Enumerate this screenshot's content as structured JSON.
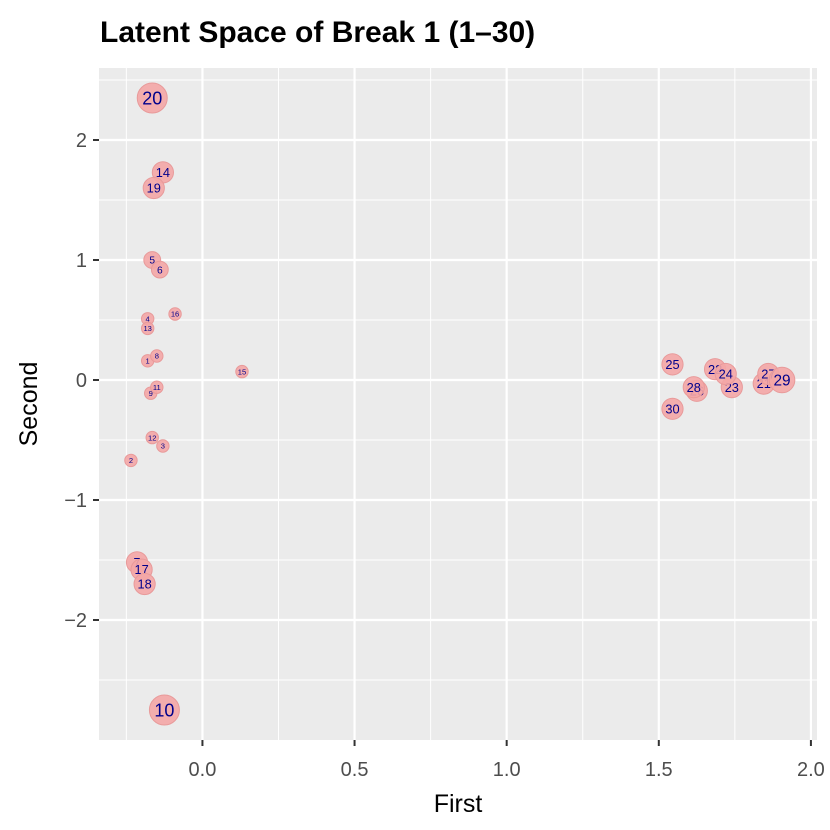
{
  "chart_data": {
    "type": "scatter",
    "title": "Latent Space of Break 1 (1–30)",
    "xlabel": "First",
    "ylabel": "Second",
    "xlim": [
      -0.34,
      2.02
    ],
    "ylim": [
      -3.0,
      2.6
    ],
    "x_ticks": [
      0.0,
      0.5,
      1.0,
      1.5,
      2.0
    ],
    "x_tick_labels": [
      "0.0",
      "0.5",
      "1.0",
      "1.5",
      "2.0"
    ],
    "y_ticks": [
      2,
      1,
      0,
      -1,
      -2
    ],
    "y_tick_labels": [
      "2",
      "1",
      "0",
      "−1",
      "−2"
    ],
    "grid": true,
    "legend": "none",
    "point_fill": "#f4a6a6",
    "label_color": "#00008b",
    "panel_background": "#ebebeb",
    "points": [
      {
        "label": "1",
        "x": -0.18,
        "y": 0.16,
        "size": 1
      },
      {
        "label": "2",
        "x": -0.235,
        "y": -0.67,
        "size": 1
      },
      {
        "label": "3",
        "x": -0.13,
        "y": -0.55,
        "size": 1
      },
      {
        "label": "4",
        "x": -0.18,
        "y": 0.51,
        "size": 1
      },
      {
        "label": "5",
        "x": -0.165,
        "y": 1.0,
        "size": 2
      },
      {
        "label": "6",
        "x": -0.14,
        "y": 0.92,
        "size": 2
      },
      {
        "label": "7",
        "x": -0.215,
        "y": -1.52,
        "size": 3
      },
      {
        "label": "8",
        "x": -0.15,
        "y": 0.2,
        "size": 1
      },
      {
        "label": "9",
        "x": -0.17,
        "y": -0.11,
        "size": 1
      },
      {
        "label": "10",
        "x": -0.125,
        "y": -2.75,
        "size": 5
      },
      {
        "label": "11",
        "x": -0.15,
        "y": -0.06,
        "size": 1
      },
      {
        "label": "12",
        "x": -0.165,
        "y": -0.48,
        "size": 1
      },
      {
        "label": "13",
        "x": -0.18,
        "y": 0.43,
        "size": 1
      },
      {
        "label": "14",
        "x": -0.13,
        "y": 1.73,
        "size": 3
      },
      {
        "label": "15",
        "x": 0.13,
        "y": 0.07,
        "size": 1
      },
      {
        "label": "16",
        "x": -0.09,
        "y": 0.55,
        "size": 1
      },
      {
        "label": "17",
        "x": -0.2,
        "y": -1.58,
        "size": 3
      },
      {
        "label": "18",
        "x": -0.19,
        "y": -1.7,
        "size": 3
      },
      {
        "label": "19",
        "x": -0.16,
        "y": 1.6,
        "size": 3
      },
      {
        "label": "20",
        "x": -0.165,
        "y": 2.35,
        "size": 5
      },
      {
        "label": "21",
        "x": 1.845,
        "y": -0.03,
        "size": 3
      },
      {
        "label": "22",
        "x": 1.685,
        "y": 0.09,
        "size": 3
      },
      {
        "label": "23",
        "x": 1.74,
        "y": -0.06,
        "size": 3
      },
      {
        "label": "24",
        "x": 1.72,
        "y": 0.05,
        "size": 3
      },
      {
        "label": "25",
        "x": 1.545,
        "y": 0.13,
        "size": 3
      },
      {
        "label": "26",
        "x": 1.625,
        "y": -0.09,
        "size": 3
      },
      {
        "label": "27",
        "x": 1.86,
        "y": 0.05,
        "size": 3
      },
      {
        "label": "28",
        "x": 1.615,
        "y": -0.06,
        "size": 3
      },
      {
        "label": "29",
        "x": 1.905,
        "y": 0.0,
        "size": 4
      },
      {
        "label": "30",
        "x": 1.545,
        "y": -0.24,
        "size": 3
      }
    ]
  }
}
